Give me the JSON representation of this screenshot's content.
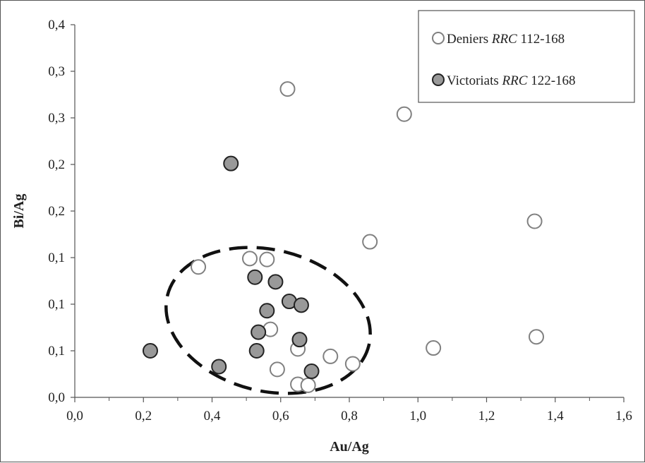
{
  "chart_data": {
    "type": "scatter",
    "xlabel": "Au/Ag",
    "ylabel": "Bi/Ag",
    "xlim": [
      0,
      1.6
    ],
    "ylim": [
      0,
      0.4
    ],
    "x_ticks": [
      0.0,
      0.2,
      0.4,
      0.6,
      0.8,
      1.0,
      1.2,
      1.4,
      1.6
    ],
    "x_tick_labels": [
      "0,0",
      "0,2",
      "0,4",
      "0,6",
      "0,8",
      "1,0",
      "1,2",
      "1,4",
      "1,6"
    ],
    "y_ticks": [
      0.0,
      0.05,
      0.1,
      0.15,
      0.2,
      0.25,
      0.3,
      0.35,
      0.4
    ],
    "y_tick_labels": [
      "0,0",
      "0,1",
      "0,1",
      "0,1",
      "0,2",
      "0,2",
      "0,3",
      "0,3",
      "0,4"
    ],
    "grid": false,
    "legend_position": "top-right",
    "series": [
      {
        "name_plain": "Deniers ",
        "name_italic": "RRC",
        "name_suffix": " 112-168",
        "marker": "open-circle",
        "color": "#ffffff",
        "edge_color": "#808080",
        "points": [
          [
            0.36,
            0.14
          ],
          [
            0.51,
            0.149
          ],
          [
            0.56,
            0.148
          ],
          [
            0.62,
            0.331
          ],
          [
            0.57,
            0.073
          ],
          [
            0.65,
            0.052
          ],
          [
            0.59,
            0.03
          ],
          [
            0.65,
            0.014
          ],
          [
            0.68,
            0.013
          ],
          [
            0.745,
            0.044
          ],
          [
            0.81,
            0.036
          ],
          [
            0.86,
            0.167
          ],
          [
            0.96,
            0.304
          ],
          [
            1.045,
            0.053
          ],
          [
            1.34,
            0.189
          ],
          [
            1.345,
            0.065
          ]
        ]
      },
      {
        "name_plain": "Victoriats ",
        "name_italic": "RRC",
        "name_suffix": " 122-168",
        "marker": "filled-circle",
        "color": "#999999",
        "edge_color": "#222222",
        "points": [
          [
            0.22,
            0.05
          ],
          [
            0.42,
            0.033
          ],
          [
            0.455,
            0.251
          ],
          [
            0.525,
            0.129
          ],
          [
            0.585,
            0.124
          ],
          [
            0.56,
            0.093
          ],
          [
            0.625,
            0.103
          ],
          [
            0.66,
            0.099
          ],
          [
            0.535,
            0.07
          ],
          [
            0.53,
            0.05
          ],
          [
            0.655,
            0.062
          ],
          [
            0.69,
            0.028
          ]
        ]
      }
    ]
  }
}
